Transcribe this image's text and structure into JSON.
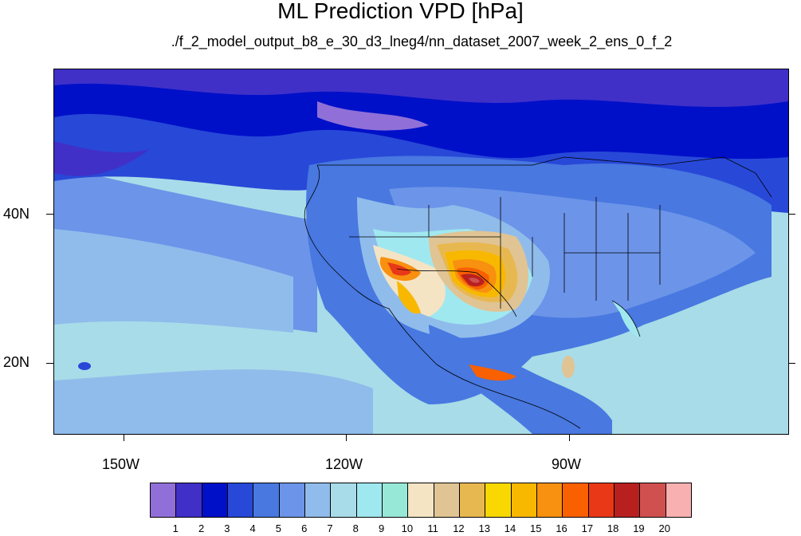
{
  "title": "ML Prediction VPD [hPa]",
  "subtitle": "./f_2_model_output_b8_e_30_d3_lneg4/nn_dataset_2007_week_2_ens_0_f_2",
  "lat_labels": [
    "40N",
    "20N"
  ],
  "lon_labels": [
    "150W",
    "120W",
    "90W"
  ],
  "colorbar": {
    "labels": [
      "1",
      "2",
      "3",
      "4",
      "5",
      "6",
      "7",
      "8",
      "9",
      "10",
      "11",
      "12",
      "13",
      "14",
      "15",
      "16",
      "17",
      "18",
      "19",
      "20"
    ],
    "colors": [
      "#9070d8",
      "#4030c8",
      "#0010c8",
      "#2848d8",
      "#4878e0",
      "#6c94e8",
      "#90bcec",
      "#a8dce8",
      "#a0e8f0",
      "#98e8d8",
      "#f4e4c4",
      "#e0c494",
      "#e8b850",
      "#f8d800",
      "#f8b800",
      "#f89010",
      "#f86000",
      "#e83818",
      "#b82020",
      "#d05050",
      "#f8b0b0"
    ]
  }
}
